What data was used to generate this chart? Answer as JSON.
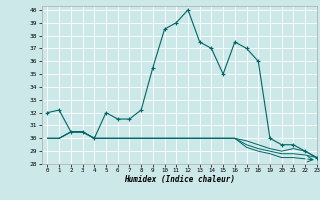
{
  "xlabel": "Humidex (Indice chaleur)",
  "bg_color": "#cce8e8",
  "line_color": "#006666",
  "grid_color": "#b0d0d0",
  "xlim": [
    -0.5,
    23
  ],
  "ylim": [
    28,
    40.3
  ],
  "yticks": [
    28,
    29,
    30,
    31,
    32,
    33,
    34,
    35,
    36,
    37,
    38,
    39,
    40
  ],
  "xticks": [
    0,
    1,
    2,
    3,
    4,
    5,
    6,
    7,
    8,
    9,
    10,
    11,
    12,
    13,
    14,
    15,
    16,
    17,
    18,
    19,
    20,
    21,
    22,
    23
  ],
  "series_main": [
    32.0,
    32.2,
    30.5,
    30.5,
    30.0,
    32.0,
    31.5,
    31.5,
    32.2,
    35.5,
    38.5,
    39.0,
    40.0,
    37.5,
    37.0,
    35.0,
    37.5,
    37.0,
    36.0,
    30.0,
    29.5,
    29.5,
    29.0,
    28.5
  ],
  "series_flat1": [
    30.0,
    30.0,
    30.5,
    30.5,
    30.0,
    30.0,
    30.0,
    30.0,
    30.0,
    30.0,
    30.0,
    30.0,
    30.0,
    30.0,
    30.0,
    30.0,
    30.0,
    29.8,
    29.5,
    29.2,
    29.0,
    29.2,
    29.0,
    28.5
  ],
  "series_flat2": [
    30.0,
    30.0,
    30.5,
    30.5,
    30.0,
    30.0,
    30.0,
    30.0,
    30.0,
    30.0,
    30.0,
    30.0,
    30.0,
    30.0,
    30.0,
    30.0,
    30.0,
    29.5,
    29.2,
    29.0,
    28.8,
    28.8,
    28.7,
    28.5
  ],
  "series_flat3": [
    30.0,
    30.0,
    30.5,
    30.5,
    30.0,
    30.0,
    30.0,
    30.0,
    30.0,
    30.0,
    30.0,
    30.0,
    30.0,
    30.0,
    30.0,
    30.0,
    30.0,
    29.3,
    29.0,
    28.8,
    28.5,
    28.5,
    28.4,
    28.3
  ]
}
